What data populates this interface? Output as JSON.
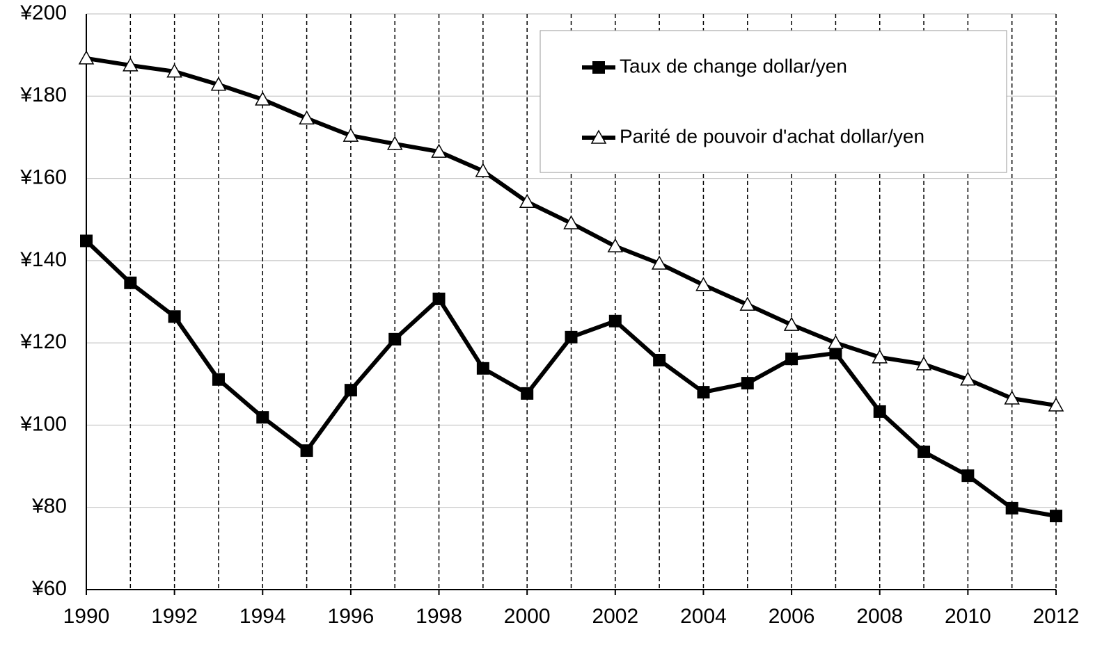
{
  "chart_data": {
    "type": "line",
    "x": [
      1990,
      1991,
      1992,
      1993,
      1994,
      1995,
      1996,
      1997,
      1998,
      1999,
      2000,
      2001,
      2002,
      2003,
      2004,
      2005,
      2006,
      2007,
      2008,
      2009,
      2010,
      2011,
      2012
    ],
    "series": [
      {
        "name": "Taux de change dollar/yen",
        "color": "#000000",
        "marker": "square",
        "values": [
          144.8,
          134.6,
          126.4,
          111.1,
          101.9,
          93.8,
          108.5,
          120.9,
          130.7,
          113.8,
          107.7,
          121.4,
          125.3,
          115.8,
          108.0,
          110.2,
          116.1,
          117.5,
          103.3,
          93.5,
          87.7,
          79.8,
          77.9
        ]
      },
      {
        "name": "Parité de pouvoir d'achat dollar/yen",
        "color": "#000000",
        "marker": "triangle",
        "values": [
          189.2,
          187.5,
          186.0,
          182.8,
          179.2,
          174.6,
          170.4,
          168.4,
          166.5,
          161.8,
          154.3,
          149.1,
          143.5,
          139.3,
          134.1,
          129.3,
          124.4,
          120.0,
          116.5,
          114.8,
          111.1,
          106.5,
          104.8
        ]
      }
    ],
    "xlim": [
      1990,
      2012
    ],
    "xticks": [
      1990,
      1992,
      1994,
      1996,
      1998,
      2000,
      2002,
      2004,
      2006,
      2008,
      2010,
      2012
    ],
    "ylim": [
      60,
      200
    ],
    "yticks": [
      {
        "value": 60,
        "label": "¥60"
      },
      {
        "value": 80,
        "label": "¥80"
      },
      {
        "value": 100,
        "label": "¥100"
      },
      {
        "value": 120,
        "label": "¥120"
      },
      {
        "value": 140,
        "label": "¥140"
      },
      {
        "value": 160,
        "label": "¥160"
      },
      {
        "value": 180,
        "label": "¥180"
      },
      {
        "value": 200,
        "label": "¥200"
      }
    ],
    "grid": true,
    "legend": "upper right"
  }
}
